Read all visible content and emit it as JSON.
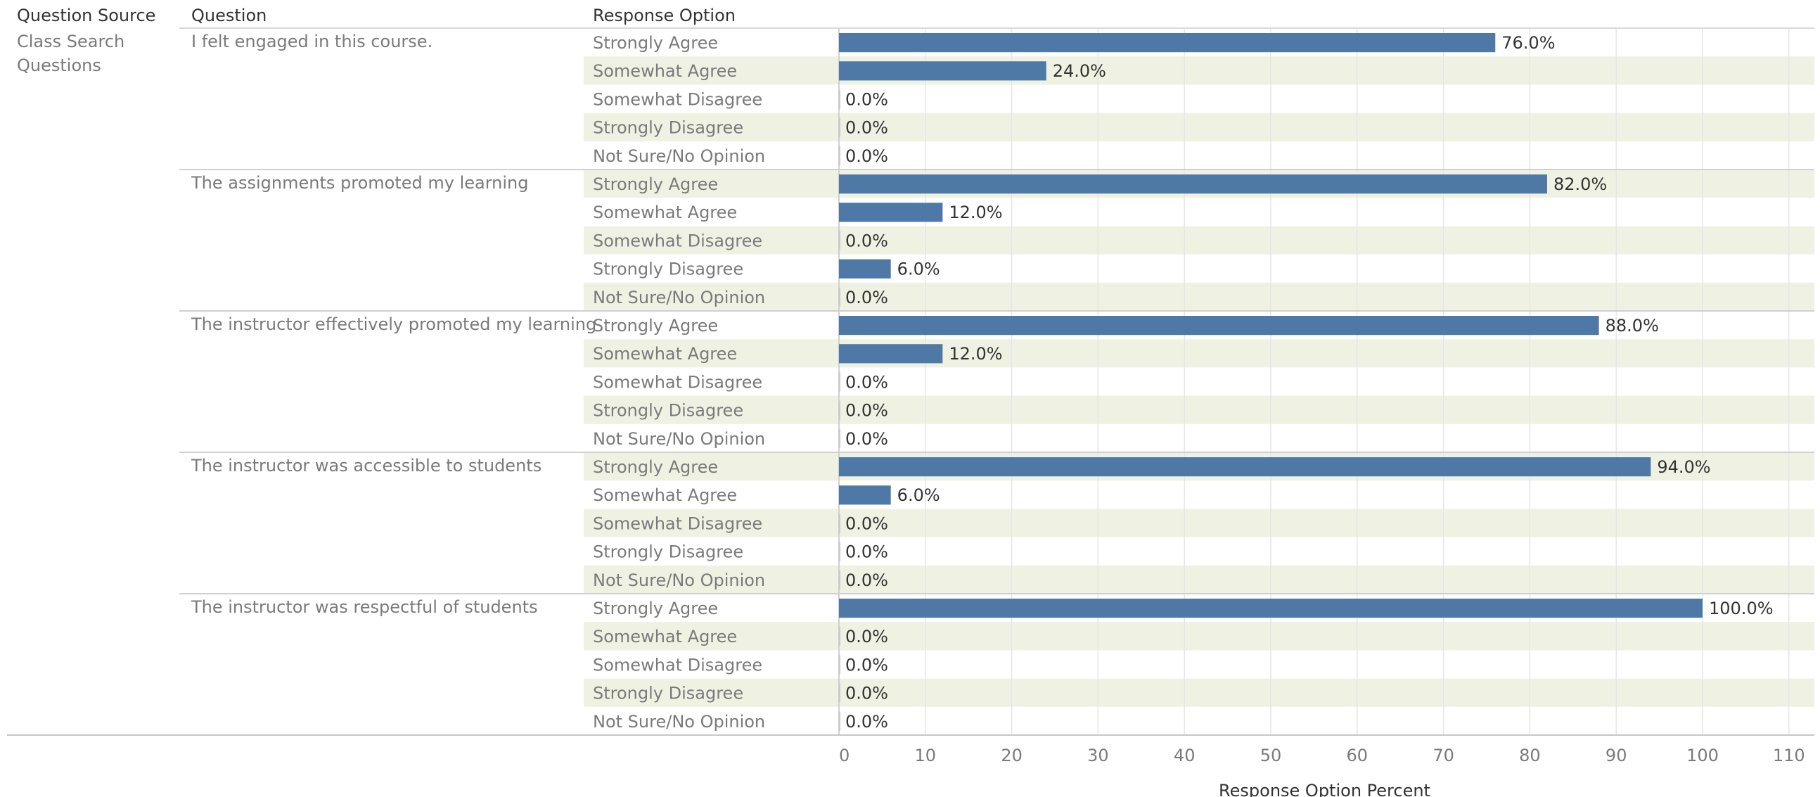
{
  "header": {
    "question_source": "Question Source",
    "question": "Question",
    "response_option": "Response Option"
  },
  "question_source_label": "Class Search Questions",
  "colors": {
    "bar": "#4e79a7",
    "band": "#eff2e3",
    "grid": "#e6e6e6",
    "text": "#7a7a7a"
  },
  "chart_data": {
    "type": "bar",
    "orientation": "horizontal",
    "question_source": "Class Search Questions",
    "response_options": [
      "Strongly Agree",
      "Somewhat Agree",
      "Somewhat Disagree",
      "Strongly Disagree",
      "Not Sure/No Opinion"
    ],
    "questions": [
      {
        "question": "I felt engaged in this course.",
        "values": [
          76.0,
          24.0,
          0.0,
          0.0,
          0.0
        ],
        "labels": [
          "76.0%",
          "24.0%",
          "0.0%",
          "0.0%",
          "0.0%"
        ]
      },
      {
        "question": "The assignments promoted my learning",
        "values": [
          82.0,
          12.0,
          0.0,
          6.0,
          0.0
        ],
        "labels": [
          "82.0%",
          "12.0%",
          "0.0%",
          "6.0%",
          "0.0%"
        ]
      },
      {
        "question": "The instructor effectively promoted my learning",
        "values": [
          88.0,
          12.0,
          0.0,
          0.0,
          0.0
        ],
        "labels": [
          "88.0%",
          "12.0%",
          "0.0%",
          "0.0%",
          "0.0%"
        ]
      },
      {
        "question": "The instructor was accessible to students",
        "values": [
          94.0,
          6.0,
          0.0,
          0.0,
          0.0
        ],
        "labels": [
          "94.0%",
          "6.0%",
          "0.0%",
          "0.0%",
          "0.0%"
        ]
      },
      {
        "question": "The instructor was respectful of students",
        "values": [
          100.0,
          0.0,
          0.0,
          0.0,
          0.0
        ],
        "labels": [
          "100.0%",
          "0.0%",
          "0.0%",
          "0.0%",
          "0.0%"
        ]
      }
    ],
    "xlabel": "Response Option Percent",
    "xlim": [
      0,
      113
    ],
    "xticks": [
      0,
      10,
      20,
      30,
      40,
      50,
      60,
      70,
      80,
      90,
      100,
      110
    ],
    "grid": true
  }
}
